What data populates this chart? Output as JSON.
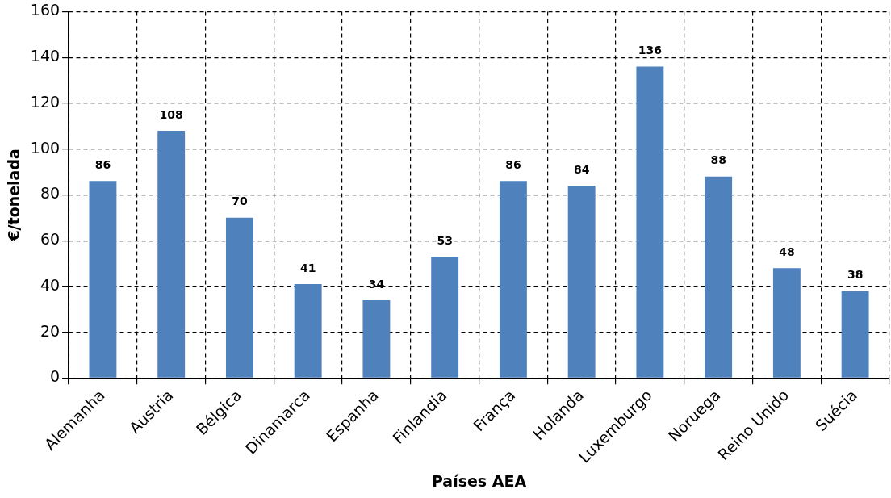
{
  "chart_data": {
    "type": "bar",
    "xlabel": "Países AEA",
    "ylabel": "€/tonelada",
    "categories": [
      "Alemanha",
      "Austria",
      "Bélgica",
      "Dinamarca",
      "Espanha",
      "Finlandia",
      "França",
      "Holanda",
      "Luxemburgo",
      "Noruega",
      "Reino Unido",
      "Suécia"
    ],
    "values": [
      86,
      108,
      70,
      41,
      34,
      53,
      86,
      84,
      136,
      88,
      48,
      38
    ],
    "color": "#4f81bd",
    "ylim": [
      0,
      160
    ],
    "yticks": [
      0,
      20,
      40,
      60,
      80,
      100,
      120,
      140,
      160
    ],
    "grid": true,
    "data_labels": true,
    "legend": false
  }
}
